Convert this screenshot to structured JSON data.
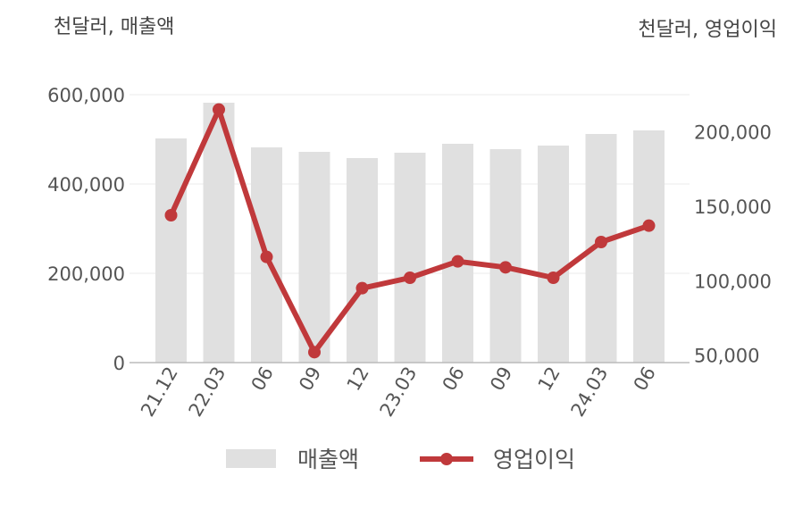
{
  "chart_data": {
    "type": "bar+line",
    "left_unit_label": "천달러, 매출액",
    "right_unit_label": "천달러, 영업이익",
    "categories": [
      "21.12",
      "22.03",
      "06",
      "09",
      "12",
      "23.03",
      "06",
      "09",
      "12",
      "24.03",
      "06"
    ],
    "series": [
      {
        "name": "매출액",
        "type": "bar",
        "axis": "left",
        "color": "#e0e0e0",
        "values": [
          502000,
          582000,
          482000,
          472000,
          458000,
          470000,
          490000,
          478000,
          486000,
          512000,
          520000
        ]
      },
      {
        "name": "영업이익",
        "type": "line",
        "axis": "right",
        "color": "#c0393b",
        "values": [
          144000,
          215000,
          116000,
          52000,
          95000,
          102000,
          113000,
          109000,
          102000,
          126000,
          137000
        ]
      }
    ],
    "left_axis": {
      "ylim": [
        0,
        600000
      ],
      "ticks": [
        0,
        200000,
        400000,
        600000
      ],
      "tick_labels": [
        "0",
        "200,000",
        "400,000",
        "600,000"
      ]
    },
    "right_axis": {
      "ylim": [
        45000,
        225000
      ],
      "ticks": [
        50000,
        100000,
        150000,
        200000
      ],
      "tick_labels": [
        "50,000",
        "100,000",
        "150,000",
        "200,000"
      ]
    },
    "grid": true,
    "legend_position": "bottom"
  }
}
